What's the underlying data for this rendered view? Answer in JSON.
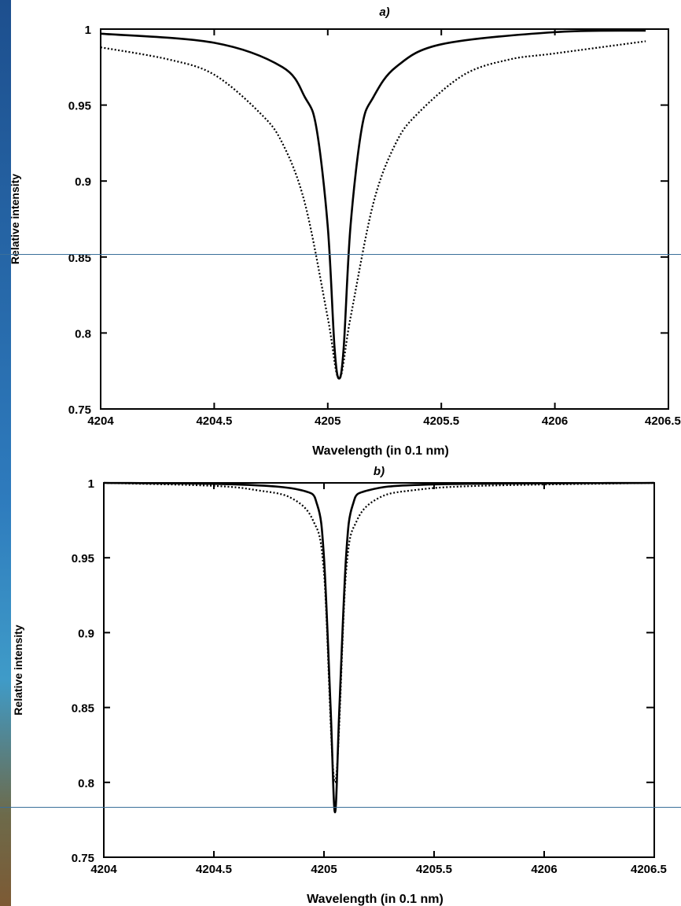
{
  "chart_data": [
    {
      "type": "line",
      "panel_label": "a)",
      "xlabel": "Wavelength (in 0.1 nm)",
      "ylabel": "Relative intensity",
      "xlim": [
        4204,
        4206.5
      ],
      "ylim": [
        0.75,
        1
      ],
      "x_ticks": [
        "4204",
        "4204.5",
        "4205",
        "4205.5",
        "4206",
        "4206.5"
      ],
      "y_ticks": [
        "1",
        "0.95",
        "0.9",
        "0.85",
        "0.8",
        "0.75"
      ],
      "series": [
        {
          "style": "solid",
          "x": [
            4204.0,
            4204.5,
            4204.8,
            4204.9,
            4204.95,
            4205.0,
            4205.03,
            4205.05,
            4205.07,
            4205.1,
            4205.15,
            4205.2,
            4205.3,
            4205.5,
            4206.0,
            4206.4
          ],
          "y": [
            0.997,
            0.991,
            0.975,
            0.955,
            0.935,
            0.87,
            0.79,
            0.77,
            0.79,
            0.87,
            0.935,
            0.955,
            0.975,
            0.99,
            0.998,
            0.999
          ]
        },
        {
          "style": "dotted",
          "x": [
            4204.0,
            4204.3,
            4204.5,
            4204.7,
            4204.8,
            4204.9,
            4205.0,
            4205.05,
            4205.1,
            4205.2,
            4205.3,
            4205.4,
            4205.6,
            4205.8,
            4206.0,
            4206.4
          ],
          "y": [
            0.988,
            0.98,
            0.97,
            0.945,
            0.925,
            0.885,
            0.81,
            0.77,
            0.81,
            0.885,
            0.925,
            0.945,
            0.97,
            0.98,
            0.984,
            0.992
          ]
        }
      ]
    },
    {
      "type": "line",
      "panel_label": "b)",
      "xlabel": "Wavelength (in 0.1 nm)",
      "ylabel": "Relative intensity",
      "xlim": [
        4204,
        4206.5
      ],
      "ylim": [
        0.75,
        1
      ],
      "x_ticks": [
        "4204",
        "4204.5",
        "4205",
        "4205.5",
        "4206",
        "4206.5"
      ],
      "y_ticks": [
        "1",
        "0.95",
        "0.9",
        "0.85",
        "0.8",
        "0.75"
      ],
      "series": [
        {
          "style": "solid",
          "x": [
            4204.0,
            4204.6,
            4204.9,
            4204.97,
            4205.0,
            4205.03,
            4205.05,
            4205.07,
            4205.1,
            4205.13,
            4205.2,
            4205.5,
            4206.5
          ],
          "y": [
            1.0,
            0.999,
            0.995,
            0.985,
            0.95,
            0.85,
            0.78,
            0.85,
            0.95,
            0.985,
            0.995,
            0.999,
            1.0
          ]
        },
        {
          "style": "dotted",
          "x": [
            4204.0,
            4204.5,
            4204.7,
            4204.85,
            4204.95,
            4205.0,
            4205.05,
            4205.1,
            4205.15,
            4205.25,
            4205.4,
            4205.7,
            4206.5
          ],
          "y": [
            1.0,
            0.998,
            0.995,
            0.99,
            0.975,
            0.94,
            0.8,
            0.94,
            0.975,
            0.99,
            0.995,
            0.998,
            1.0
          ]
        }
      ]
    }
  ]
}
